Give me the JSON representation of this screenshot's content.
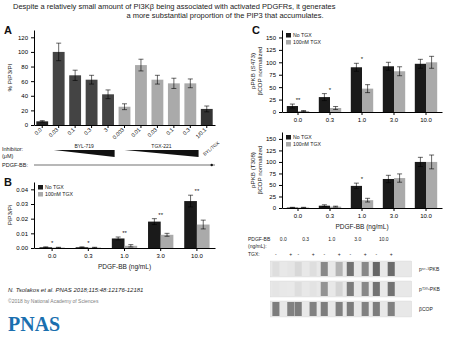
{
  "title": "Despite a relatively small amount of PI3Kβ being associated with activated PDGFRs, it generates",
  "subtitle": "a more substantial proportion of the PIP3 that accumulates.",
  "citation": "N. Tsolakos et al. PNAS 2018;115:48:12176-12181",
  "copyright": "©2018 by National Academy of Sciences",
  "logo": {
    "text": "PNAS",
    "color": "#1a6faf"
  },
  "chart_data": [
    {
      "type": "bar",
      "panel_label": "A",
      "ylabel": "% PiP3/PI",
      "categories": [
        "0.0",
        "0.03",
        "0.1",
        "0.3",
        "3",
        "0.003",
        "0.01",
        "0.03",
        "0.1",
        "0.3",
        "1/0.1"
      ],
      "values": [
        5,
        100,
        68,
        62,
        42,
        25,
        82,
        62,
        57,
        57,
        22
      ],
      "errors": [
        1,
        12,
        7,
        6,
        6,
        4,
        8,
        6,
        7,
        6,
        4
      ],
      "colors": [
        "#222222",
        "#444444",
        "#444444",
        "#444444",
        "#444444",
        "#aaaaaa",
        "#aaaaaa",
        "#aaaaaa",
        "#aaaaaa",
        "#aaaaaa",
        "#333333"
      ],
      "ylim": [
        0,
        130
      ],
      "yticks": [
        0,
        20,
        40,
        60,
        80,
        100,
        120
      ],
      "annotations": {
        "inhibitor": "Inhibitor:",
        "inhibitor_unit": "(μM)",
        "first_inhibitor": "BYL-719",
        "second_inhibitor": "TGX-221",
        "combination": "BYL/TGX",
        "stimulus": "PDGF-BB:"
      }
    },
    {
      "type": "bar",
      "panel_label": "B",
      "ylabel": "PiP3/Pi",
      "xlabel": "PDGF-BB (ng/mL)",
      "categories": [
        "0.0",
        "0.3",
        "1.0",
        "3.0",
        "10.0"
      ],
      "series": [
        {
          "name": "No TGX",
          "color": "#1a1a1a",
          "values": [
            0.0005,
            0.0005,
            0.0065,
            0.018,
            0.032
          ],
          "errors": [
            0.0003,
            0.0003,
            0.001,
            0.002,
            0.004
          ]
        },
        {
          "name": "100nM TGX",
          "color": "#aaaaaa",
          "values": [
            0.0003,
            0.0003,
            0.0015,
            0.009,
            0.016
          ],
          "errors": [
            0.0002,
            0.0002,
            0.0008,
            0.001,
            0.003
          ]
        }
      ],
      "significance": [
        "*",
        "*",
        "**",
        "**",
        "**"
      ],
      "ylim": [
        0,
        0.045
      ],
      "yticks": [
        {
          "value": 0,
          "label": "0.00"
        },
        0.01,
        0.02,
        0.03,
        0.04
      ],
      "legend": "top-left"
    },
    {
      "type": "bar",
      "panel_label": "C",
      "ylabel": "pPKB (S473)\nβCOP normalized",
      "categories": [
        "0.0",
        "0.3",
        "1.0",
        "3.0",
        "10.0"
      ],
      "series": [
        {
          "name": "No TGX",
          "color": "#1a1a1a",
          "values": [
            12,
            30,
            90,
            92,
            97
          ],
          "errors": [
            4,
            7,
            8,
            8,
            9
          ]
        },
        {
          "name": "100nM TGX",
          "color": "#aaaaaa",
          "values": [
            2,
            8,
            47,
            82,
            100
          ],
          "errors": [
            1,
            3,
            8,
            9,
            12
          ]
        }
      ],
      "significance": [
        "**",
        "*",
        "*",
        null,
        null
      ],
      "ylim": [
        0,
        165
      ],
      "yticks": [
        0,
        25,
        50,
        75,
        100,
        125,
        150
      ],
      "legend": "top-left"
    },
    {
      "type": "bar",
      "ylabel": "pPKB (T308)\nβCOP normalized",
      "xlabel": "PDGF-BB (ng/mL)",
      "categories": [
        "0.0",
        "0.3",
        "1.0",
        "3.0",
        "10.0"
      ],
      "series": [
        {
          "name": "No TGX",
          "color": "#1a1a1a",
          "values": [
            1,
            5,
            48,
            63,
            100
          ],
          "errors": [
            0.5,
            2,
            6,
            8,
            10
          ]
        },
        {
          "name": "100nM TGX",
          "color": "#aaaaaa",
          "values": [
            1,
            3,
            17,
            65,
            100
          ],
          "errors": [
            0.5,
            1,
            4,
            9,
            15
          ]
        }
      ],
      "significance": [
        null,
        null,
        "*",
        null,
        null
      ],
      "ylim": [
        0,
        165
      ],
      "yticks": [
        0,
        25,
        50,
        75,
        100,
        125,
        150
      ],
      "legend": "top-left"
    }
  ],
  "blot": {
    "header": [
      "PDGF-BB",
      "(ng/mL):"
    ],
    "conditions": [
      "0.0",
      "0.3",
      "1.0",
      "3.0",
      "10.0"
    ],
    "treatment_label": "TGX:",
    "treatment_marks": [
      "-",
      "+"
    ],
    "bands": [
      "pˢ⁴⁷³PKB",
      "pᵀ³⁰⁸PKB",
      "βCOP"
    ],
    "intensities": [
      [
        0.15,
        0.12,
        0.18,
        0.15,
        0.55,
        0.35,
        0.65,
        0.55,
        0.7,
        0.68
      ],
      [
        0.12,
        0.1,
        0.15,
        0.13,
        0.5,
        0.2,
        0.6,
        0.55,
        0.65,
        0.65
      ],
      [
        0.6,
        0.58,
        0.6,
        0.58,
        0.6,
        0.58,
        0.6,
        0.58,
        0.6,
        0.58
      ]
    ]
  }
}
